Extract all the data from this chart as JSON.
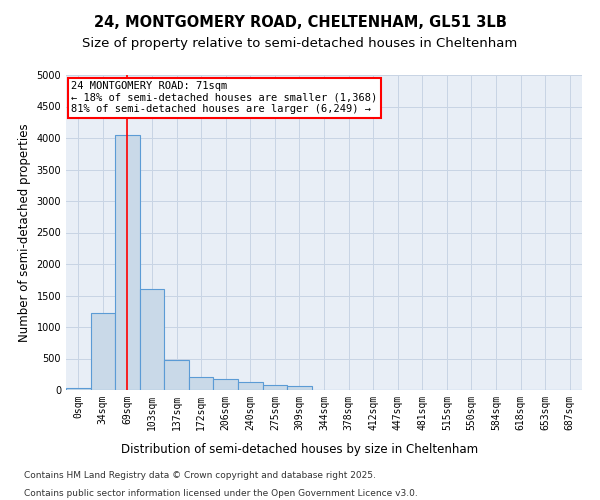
{
  "title1": "24, MONTGOMERY ROAD, CHELTENHAM, GL51 3LB",
  "title2": "Size of property relative to semi-detached houses in Cheltenham",
  "xlabel": "Distribution of semi-detached houses by size in Cheltenham",
  "ylabel": "Number of semi-detached properties",
  "bar_labels": [
    "0sqm",
    "34sqm",
    "69sqm",
    "103sqm",
    "137sqm",
    "172sqm",
    "206sqm",
    "240sqm",
    "275sqm",
    "309sqm",
    "344sqm",
    "378sqm",
    "412sqm",
    "447sqm",
    "481sqm",
    "515sqm",
    "550sqm",
    "584sqm",
    "618sqm",
    "653sqm",
    "687sqm"
  ],
  "bar_values": [
    30,
    1220,
    4050,
    1600,
    480,
    200,
    170,
    120,
    80,
    70,
    0,
    0,
    0,
    0,
    0,
    0,
    0,
    0,
    0,
    0,
    0
  ],
  "bar_color": "#c9d9e8",
  "bar_edge_color": "#5b9bd5",
  "bar_edge_width": 0.8,
  "annotation_line1": "24 MONTGOMERY ROAD: 71sqm",
  "annotation_line2": "← 18% of semi-detached houses are smaller (1,368)",
  "annotation_line3": "81% of semi-detached houses are larger (6,249) →",
  "redline_x": 2.0,
  "ylim": [
    0,
    5000
  ],
  "yticks": [
    0,
    500,
    1000,
    1500,
    2000,
    2500,
    3000,
    3500,
    4000,
    4500,
    5000
  ],
  "grid_color": "#c8d4e4",
  "background_color": "#e8eef6",
  "footer1": "Contains HM Land Registry data © Crown copyright and database right 2025.",
  "footer2": "Contains public sector information licensed under the Open Government Licence v3.0.",
  "title1_fontsize": 10.5,
  "title2_fontsize": 9.5,
  "axis_label_fontsize": 8.5,
  "tick_fontsize": 7,
  "annotation_fontsize": 7.5,
  "footer_fontsize": 6.5
}
